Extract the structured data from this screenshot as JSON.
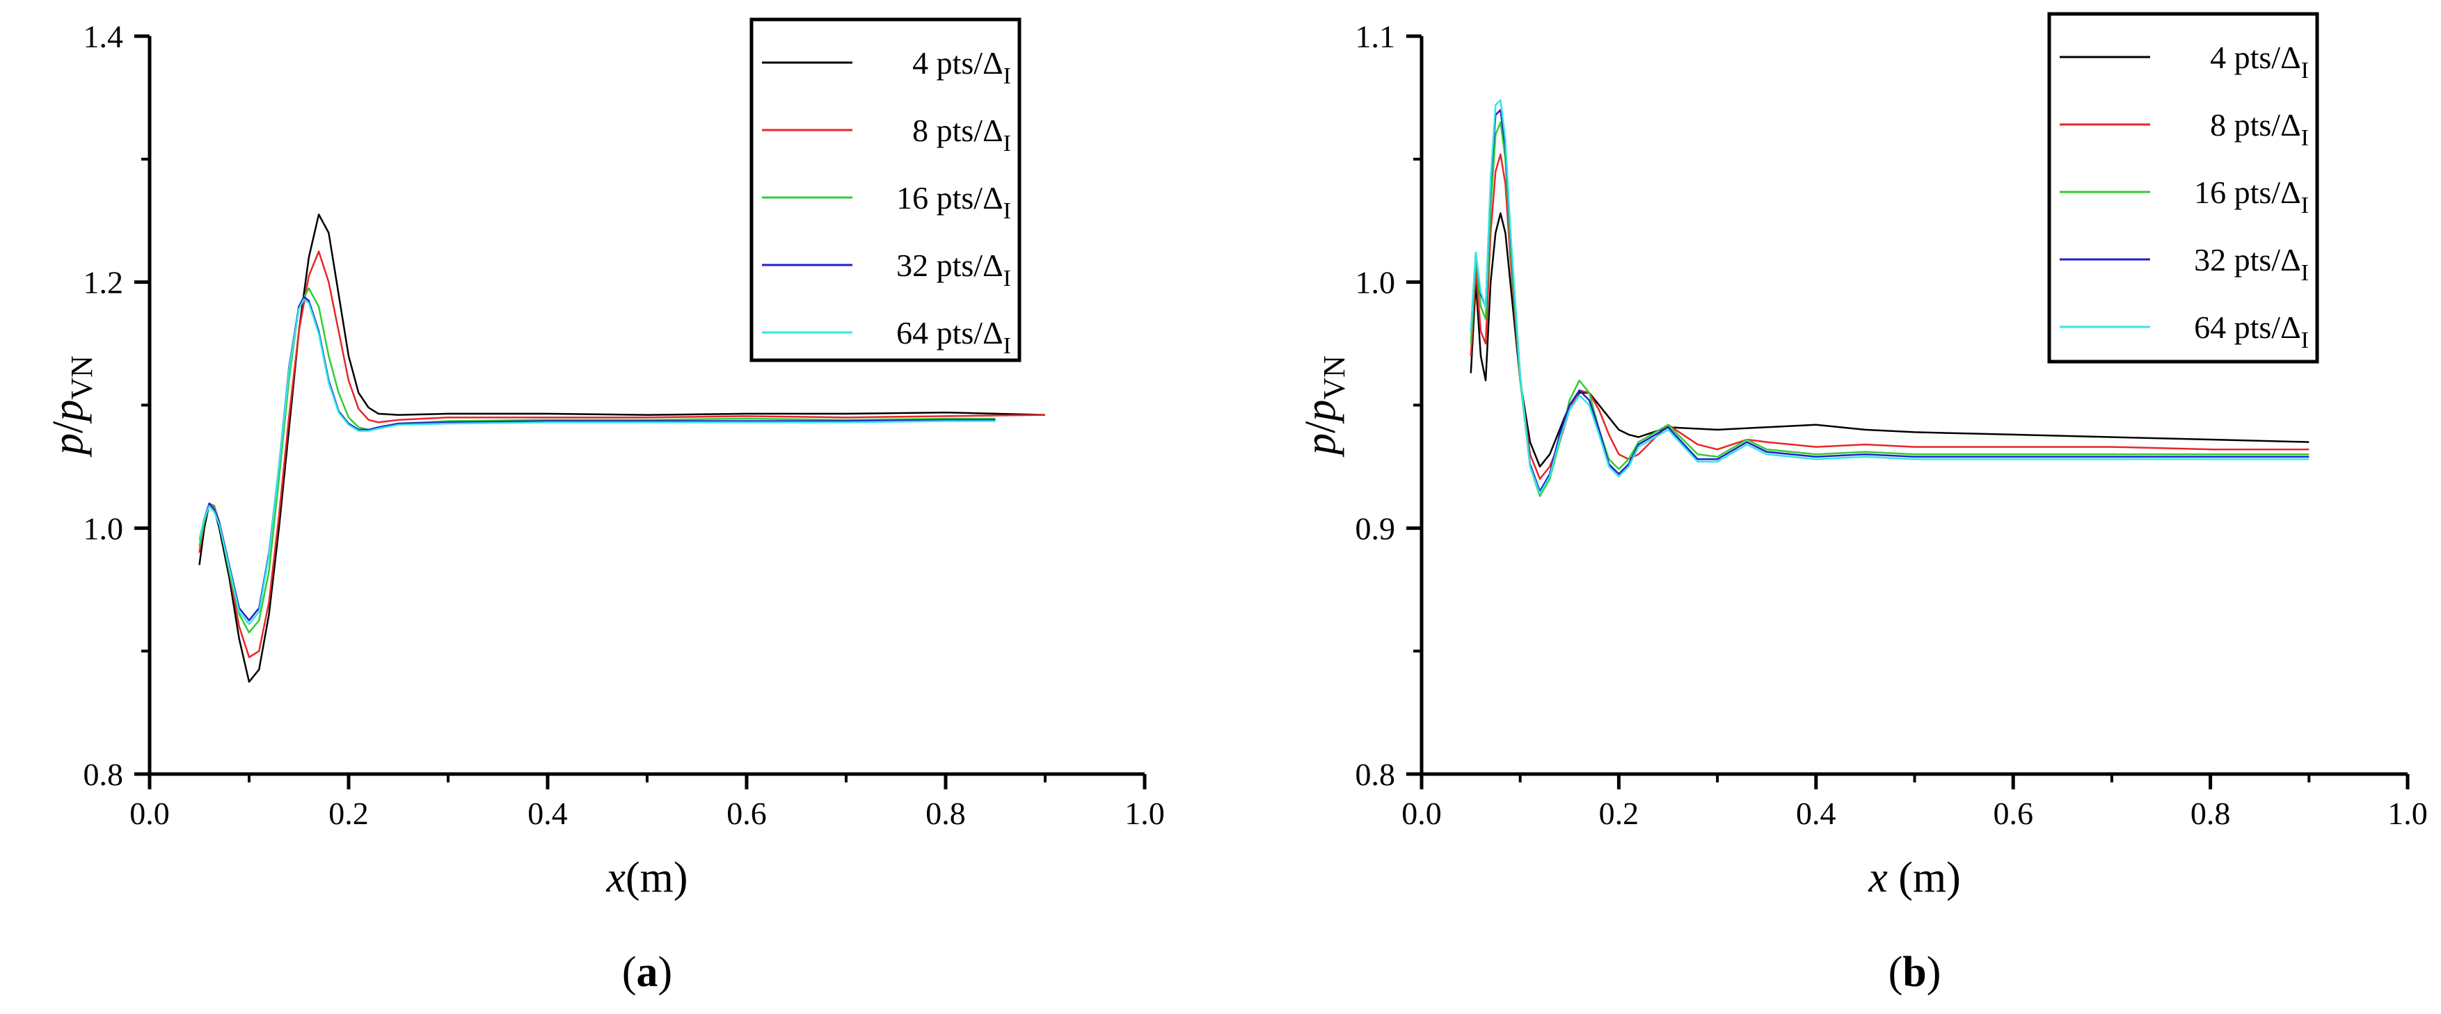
{
  "chart_data": [
    {
      "panel_label": "(a)",
      "panel_letter": "a",
      "type": "line",
      "xlabel": "x(m)",
      "xlabel_var": "x",
      "xlabel_unit": "(m)",
      "ylabel": "p/p_VN",
      "ylabel_num": "p",
      "ylabel_den": "p",
      "ylabel_sub": "VN",
      "xlim": [
        0.0,
        1.0
      ],
      "ylim": [
        0.8,
        1.4
      ],
      "xticks": [
        0.0,
        0.2,
        0.4,
        0.6,
        0.8,
        1.0
      ],
      "xtick_labels": [
        "0.0",
        "0.2",
        "0.4",
        "0.6",
        "0.8",
        "1.0"
      ],
      "yticks": [
        0.8,
        1.0,
        1.2,
        1.4
      ],
      "ytick_labels": [
        "0.8",
        "1.0",
        "1.2",
        "1.4"
      ],
      "legend_position": "top-right",
      "series": [
        {
          "name": "4 pts/ΔI",
          "label_text": "4 pts/Δ",
          "label_sub": "I",
          "color": "#000000",
          "x": [
            0.05,
            0.055,
            0.06,
            0.065,
            0.07,
            0.08,
            0.09,
            0.1,
            0.11,
            0.12,
            0.13,
            0.14,
            0.15,
            0.16,
            0.17,
            0.18,
            0.19,
            0.2,
            0.21,
            0.22,
            0.23,
            0.25,
            0.3,
            0.4,
            0.5,
            0.6,
            0.7,
            0.8,
            0.9
          ],
          "y": [
            0.97,
            1.0,
            1.02,
            1.015,
            1.0,
            0.96,
            0.91,
            0.875,
            0.885,
            0.93,
            1.0,
            1.08,
            1.16,
            1.22,
            1.255,
            1.24,
            1.19,
            1.14,
            1.11,
            1.098,
            1.093,
            1.092,
            1.093,
            1.093,
            1.092,
            1.093,
            1.093,
            1.094,
            1.092
          ]
        },
        {
          "name": "8 pts/ΔI",
          "label_text": "8 pts/Δ",
          "label_sub": "I",
          "color": "#e8262a",
          "x": [
            0.05,
            0.055,
            0.06,
            0.065,
            0.07,
            0.08,
            0.09,
            0.1,
            0.11,
            0.12,
            0.13,
            0.14,
            0.15,
            0.16,
            0.17,
            0.18,
            0.19,
            0.2,
            0.21,
            0.22,
            0.23,
            0.25,
            0.3,
            0.4,
            0.5,
            0.6,
            0.7,
            0.8,
            0.9
          ],
          "y": [
            0.98,
            1.005,
            1.02,
            1.018,
            1.005,
            0.965,
            0.92,
            0.895,
            0.9,
            0.94,
            1.01,
            1.09,
            1.16,
            1.205,
            1.225,
            1.2,
            1.16,
            1.12,
            1.097,
            1.088,
            1.086,
            1.088,
            1.09,
            1.09,
            1.09,
            1.091,
            1.09,
            1.091,
            1.092
          ]
        },
        {
          "name": "16 pts/ΔI",
          "label_text": "16 pts/Δ",
          "label_sub": "I",
          "color": "#33cc33",
          "x": [
            0.05,
            0.055,
            0.06,
            0.065,
            0.07,
            0.08,
            0.09,
            0.1,
            0.11,
            0.12,
            0.13,
            0.14,
            0.15,
            0.16,
            0.17,
            0.18,
            0.19,
            0.2,
            0.21,
            0.22,
            0.23,
            0.25,
            0.3,
            0.4,
            0.5,
            0.6,
            0.7,
            0.8,
            0.85
          ],
          "y": [
            0.985,
            1.005,
            1.02,
            1.017,
            1.005,
            0.965,
            0.93,
            0.915,
            0.925,
            0.965,
            1.04,
            1.12,
            1.18,
            1.195,
            1.18,
            1.14,
            1.11,
            1.09,
            1.082,
            1.08,
            1.081,
            1.085,
            1.087,
            1.088,
            1.088,
            1.089,
            1.088,
            1.089,
            1.089
          ]
        },
        {
          "name": "32 pts/ΔI",
          "label_text": "32 pts/Δ",
          "label_sub": "I",
          "color": "#2020cc",
          "x": [
            0.05,
            0.055,
            0.06,
            0.065,
            0.07,
            0.08,
            0.09,
            0.1,
            0.11,
            0.12,
            0.13,
            0.14,
            0.15,
            0.155,
            0.16,
            0.17,
            0.18,
            0.19,
            0.2,
            0.21,
            0.22,
            0.23,
            0.25,
            0.3,
            0.4,
            0.5,
            0.6,
            0.7,
            0.8,
            0.85
          ],
          "y": [
            0.99,
            1.008,
            1.02,
            1.015,
            1.005,
            0.97,
            0.935,
            0.925,
            0.935,
            0.98,
            1.05,
            1.13,
            1.18,
            1.188,
            1.185,
            1.16,
            1.12,
            1.095,
            1.085,
            1.08,
            1.08,
            1.082,
            1.085,
            1.086,
            1.087,
            1.087,
            1.087,
            1.087,
            1.088,
            1.088
          ]
        },
        {
          "name": "64 pts/ΔI",
          "label_text": "64 pts/Δ",
          "label_sub": "I",
          "color": "#33e6e6",
          "x": [
            0.05,
            0.055,
            0.06,
            0.065,
            0.07,
            0.08,
            0.09,
            0.1,
            0.11,
            0.12,
            0.13,
            0.14,
            0.15,
            0.155,
            0.16,
            0.17,
            0.18,
            0.19,
            0.2,
            0.21,
            0.22,
            0.23,
            0.25,
            0.3,
            0.4,
            0.5,
            0.6,
            0.7,
            0.8,
            0.85
          ],
          "y": [
            0.99,
            1.008,
            1.018,
            1.013,
            1.003,
            0.968,
            0.932,
            0.922,
            0.932,
            0.978,
            1.05,
            1.128,
            1.178,
            1.186,
            1.183,
            1.158,
            1.118,
            1.094,
            1.084,
            1.079,
            1.079,
            1.081,
            1.084,
            1.085,
            1.086,
            1.086,
            1.086,
            1.086,
            1.087,
            1.087
          ]
        }
      ]
    },
    {
      "panel_label": "(b)",
      "panel_letter": "b",
      "type": "line",
      "xlabel": "x (m)",
      "xlabel_var": "x",
      "xlabel_unit": " (m)",
      "ylabel": "p/p_VN",
      "ylabel_num": "p",
      "ylabel_den": "p",
      "ylabel_sub": "VN",
      "xlim": [
        0.0,
        1.0
      ],
      "ylim": [
        0.8,
        1.1
      ],
      "xticks": [
        0.0,
        0.2,
        0.4,
        0.6,
        0.8,
        1.0
      ],
      "xtick_labels": [
        "0.0",
        "0.2",
        "0.4",
        "0.6",
        "0.8",
        "1.0"
      ],
      "yticks": [
        0.8,
        0.9,
        1.0,
        1.1
      ],
      "ytick_labels": [
        "0.8",
        "0.9",
        "1.0",
        "1.1"
      ],
      "legend_position": "top-right",
      "series": [
        {
          "name": "4 pts/ΔI",
          "label_text": "4 pts/Δ",
          "label_sub": "I",
          "color": "#000000",
          "x": [
            0.05,
            0.055,
            0.06,
            0.065,
            0.07,
            0.075,
            0.08,
            0.085,
            0.09,
            0.1,
            0.11,
            0.12,
            0.13,
            0.14,
            0.15,
            0.16,
            0.17,
            0.18,
            0.19,
            0.2,
            0.21,
            0.22,
            0.25,
            0.3,
            0.35,
            0.4,
            0.45,
            0.5,
            0.6,
            0.7,
            0.8,
            0.9
          ],
          "y": [
            0.963,
            1.0,
            0.97,
            0.96,
            1.0,
            1.02,
            1.028,
            1.02,
            1.0,
            0.96,
            0.935,
            0.925,
            0.93,
            0.94,
            0.95,
            0.955,
            0.955,
            0.95,
            0.945,
            0.94,
            0.938,
            0.937,
            0.941,
            0.94,
            0.941,
            0.942,
            0.94,
            0.939,
            0.938,
            0.937,
            0.936,
            0.935
          ]
        },
        {
          "name": "8 pts/ΔI",
          "label_text": "8 pts/Δ",
          "label_sub": "I",
          "color": "#e8262a",
          "x": [
            0.05,
            0.055,
            0.06,
            0.065,
            0.07,
            0.075,
            0.08,
            0.085,
            0.09,
            0.1,
            0.11,
            0.12,
            0.13,
            0.14,
            0.15,
            0.16,
            0.17,
            0.18,
            0.19,
            0.2,
            0.21,
            0.22,
            0.25,
            0.28,
            0.3,
            0.33,
            0.35,
            0.4,
            0.45,
            0.5,
            0.6,
            0.7,
            0.8,
            0.9
          ],
          "y": [
            0.97,
            1.005,
            0.98,
            0.975,
            1.02,
            1.045,
            1.052,
            1.04,
            1.01,
            0.96,
            0.93,
            0.92,
            0.925,
            0.935,
            0.948,
            0.956,
            0.955,
            0.948,
            0.938,
            0.93,
            0.928,
            0.93,
            0.942,
            0.934,
            0.932,
            0.936,
            0.935,
            0.933,
            0.934,
            0.933,
            0.933,
            0.933,
            0.932,
            0.932
          ]
        },
        {
          "name": "16 pts/ΔI",
          "label_text": "16 pts/Δ",
          "label_sub": "I",
          "color": "#33cc33",
          "x": [
            0.05,
            0.055,
            0.06,
            0.065,
            0.07,
            0.075,
            0.08,
            0.085,
            0.09,
            0.1,
            0.11,
            0.12,
            0.13,
            0.14,
            0.15,
            0.16,
            0.17,
            0.18,
            0.19,
            0.2,
            0.21,
            0.22,
            0.25,
            0.28,
            0.3,
            0.33,
            0.35,
            0.4,
            0.45,
            0.5,
            0.6,
            0.7,
            0.8,
            0.9
          ],
          "y": [
            0.975,
            1.01,
            0.99,
            0.985,
            1.03,
            1.06,
            1.065,
            1.05,
            1.015,
            0.96,
            0.925,
            0.913,
            0.92,
            0.935,
            0.952,
            0.96,
            0.955,
            0.94,
            0.928,
            0.924,
            0.928,
            0.935,
            0.942,
            0.93,
            0.929,
            0.936,
            0.932,
            0.93,
            0.931,
            0.93,
            0.93,
            0.93,
            0.93,
            0.93
          ]
        },
        {
          "name": "32 pts/ΔI",
          "label_text": "32 pts/Δ",
          "label_sub": "I",
          "color": "#2020cc",
          "x": [
            0.05,
            0.055,
            0.06,
            0.065,
            0.07,
            0.075,
            0.08,
            0.085,
            0.09,
            0.1,
            0.11,
            0.12,
            0.13,
            0.14,
            0.15,
            0.16,
            0.17,
            0.18,
            0.19,
            0.2,
            0.21,
            0.22,
            0.25,
            0.28,
            0.3,
            0.33,
            0.35,
            0.4,
            0.45,
            0.5,
            0.6,
            0.7,
            0.8,
            0.9
          ],
          "y": [
            0.98,
            1.012,
            0.995,
            0.99,
            1.04,
            1.068,
            1.07,
            1.055,
            1.02,
            0.962,
            0.926,
            0.915,
            0.922,
            0.938,
            0.95,
            0.956,
            0.952,
            0.94,
            0.926,
            0.922,
            0.926,
            0.934,
            0.941,
            0.928,
            0.928,
            0.935,
            0.931,
            0.929,
            0.93,
            0.929,
            0.929,
            0.929,
            0.929,
            0.929
          ]
        },
        {
          "name": "64 pts/ΔI",
          "label_text": "64 pts/Δ",
          "label_sub": "I",
          "color": "#33e6e6",
          "x": [
            0.05,
            0.055,
            0.06,
            0.065,
            0.07,
            0.075,
            0.08,
            0.085,
            0.09,
            0.1,
            0.11,
            0.12,
            0.13,
            0.14,
            0.15,
            0.16,
            0.17,
            0.18,
            0.19,
            0.2,
            0.21,
            0.22,
            0.25,
            0.28,
            0.3,
            0.33,
            0.35,
            0.4,
            0.45,
            0.5,
            0.6,
            0.7,
            0.8,
            0.9
          ],
          "y": [
            0.98,
            1.012,
            0.996,
            0.99,
            1.042,
            1.072,
            1.074,
            1.058,
            1.022,
            0.962,
            0.925,
            0.914,
            0.921,
            0.936,
            0.948,
            0.954,
            0.95,
            0.938,
            0.925,
            0.921,
            0.925,
            0.933,
            0.94,
            0.927,
            0.927,
            0.934,
            0.93,
            0.928,
            0.929,
            0.928,
            0.928,
            0.928,
            0.928,
            0.928
          ]
        }
      ]
    }
  ]
}
